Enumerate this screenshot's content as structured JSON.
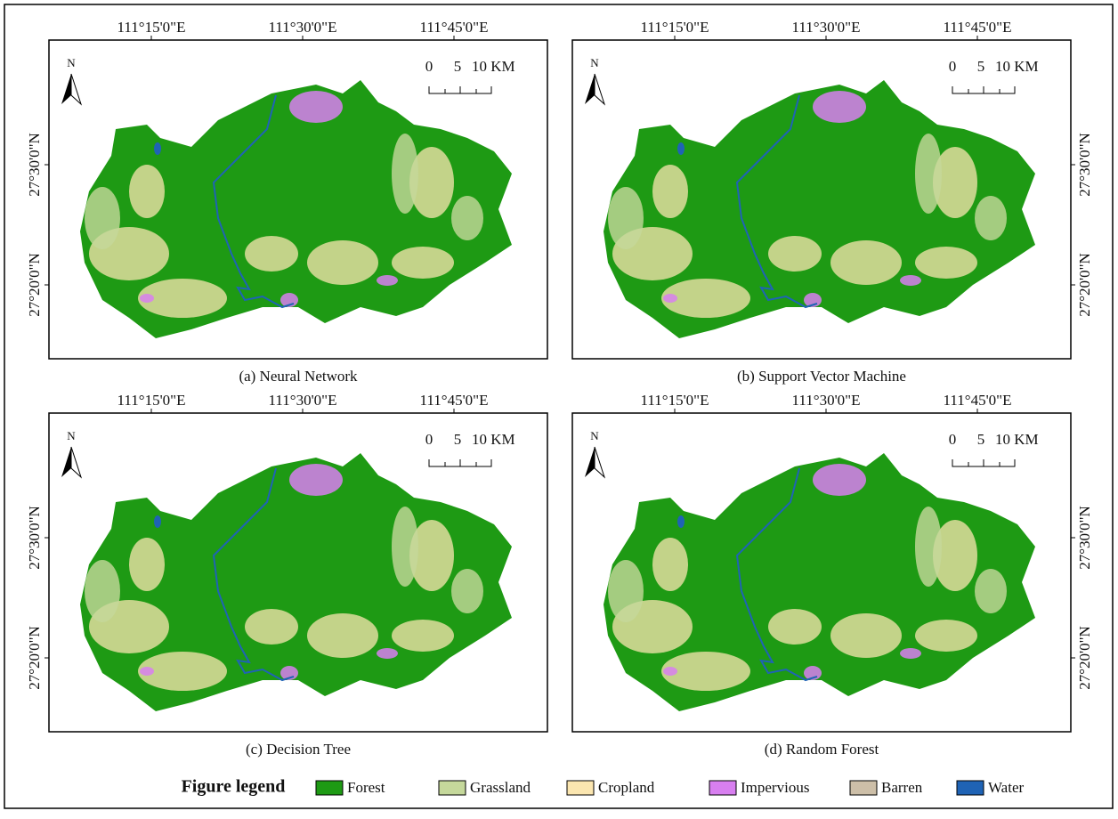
{
  "panels": [
    {
      "caption": "(a) Neural Network",
      "lon_labels": [
        "111°15'0\"E",
        "111°30'0\"E",
        "111°45'0\"E"
      ],
      "lat_labels": [
        "27°30'0\"N",
        "27°20'0\"N"
      ],
      "north": "N",
      "scale_labels": [
        "0",
        "5",
        "10 KM"
      ]
    },
    {
      "caption": "(b) Support Vector Machine",
      "lon_labels": [
        "111°15'0\"E",
        "111°30'0\"E",
        "111°45'0\"E"
      ],
      "lat_labels": [
        "27°30'0\"N",
        "27°20'0\"N"
      ],
      "north": "N",
      "scale_labels": [
        "0",
        "5",
        "10 KM"
      ]
    },
    {
      "caption": "(c) Decision Tree",
      "lon_labels": [
        "111°15'0\"E",
        "111°30'0\"E",
        "111°45'0\"E"
      ],
      "lat_labels": [
        "27°30'0\"N",
        "27°20'0\"N"
      ],
      "north": "N",
      "scale_labels": [
        "0",
        "5",
        "10 KM"
      ]
    },
    {
      "caption": "(d) Random Forest",
      "lon_labels": [
        "111°15'0\"E",
        "111°30'0\"E",
        "111°45'0\"E"
      ],
      "lat_labels": [
        "27°30'0\"N",
        "27°20'0\"N"
      ],
      "north": "N",
      "scale_labels": [
        "0",
        "5",
        "10 KM"
      ]
    }
  ],
  "legend": {
    "title": "Figure legend",
    "items": [
      {
        "name": "Forest",
        "color": "#1e9a14"
      },
      {
        "name": "Grassland",
        "color": "#c5d89b"
      },
      {
        "name": "Cropland",
        "color": "#fbe6b0"
      },
      {
        "name": "Impervious",
        "color": "#d87ff0"
      },
      {
        "name": "Barren",
        "color": "#cdbfa8"
      },
      {
        "name": "Water",
        "color": "#1f63b5"
      }
    ]
  }
}
